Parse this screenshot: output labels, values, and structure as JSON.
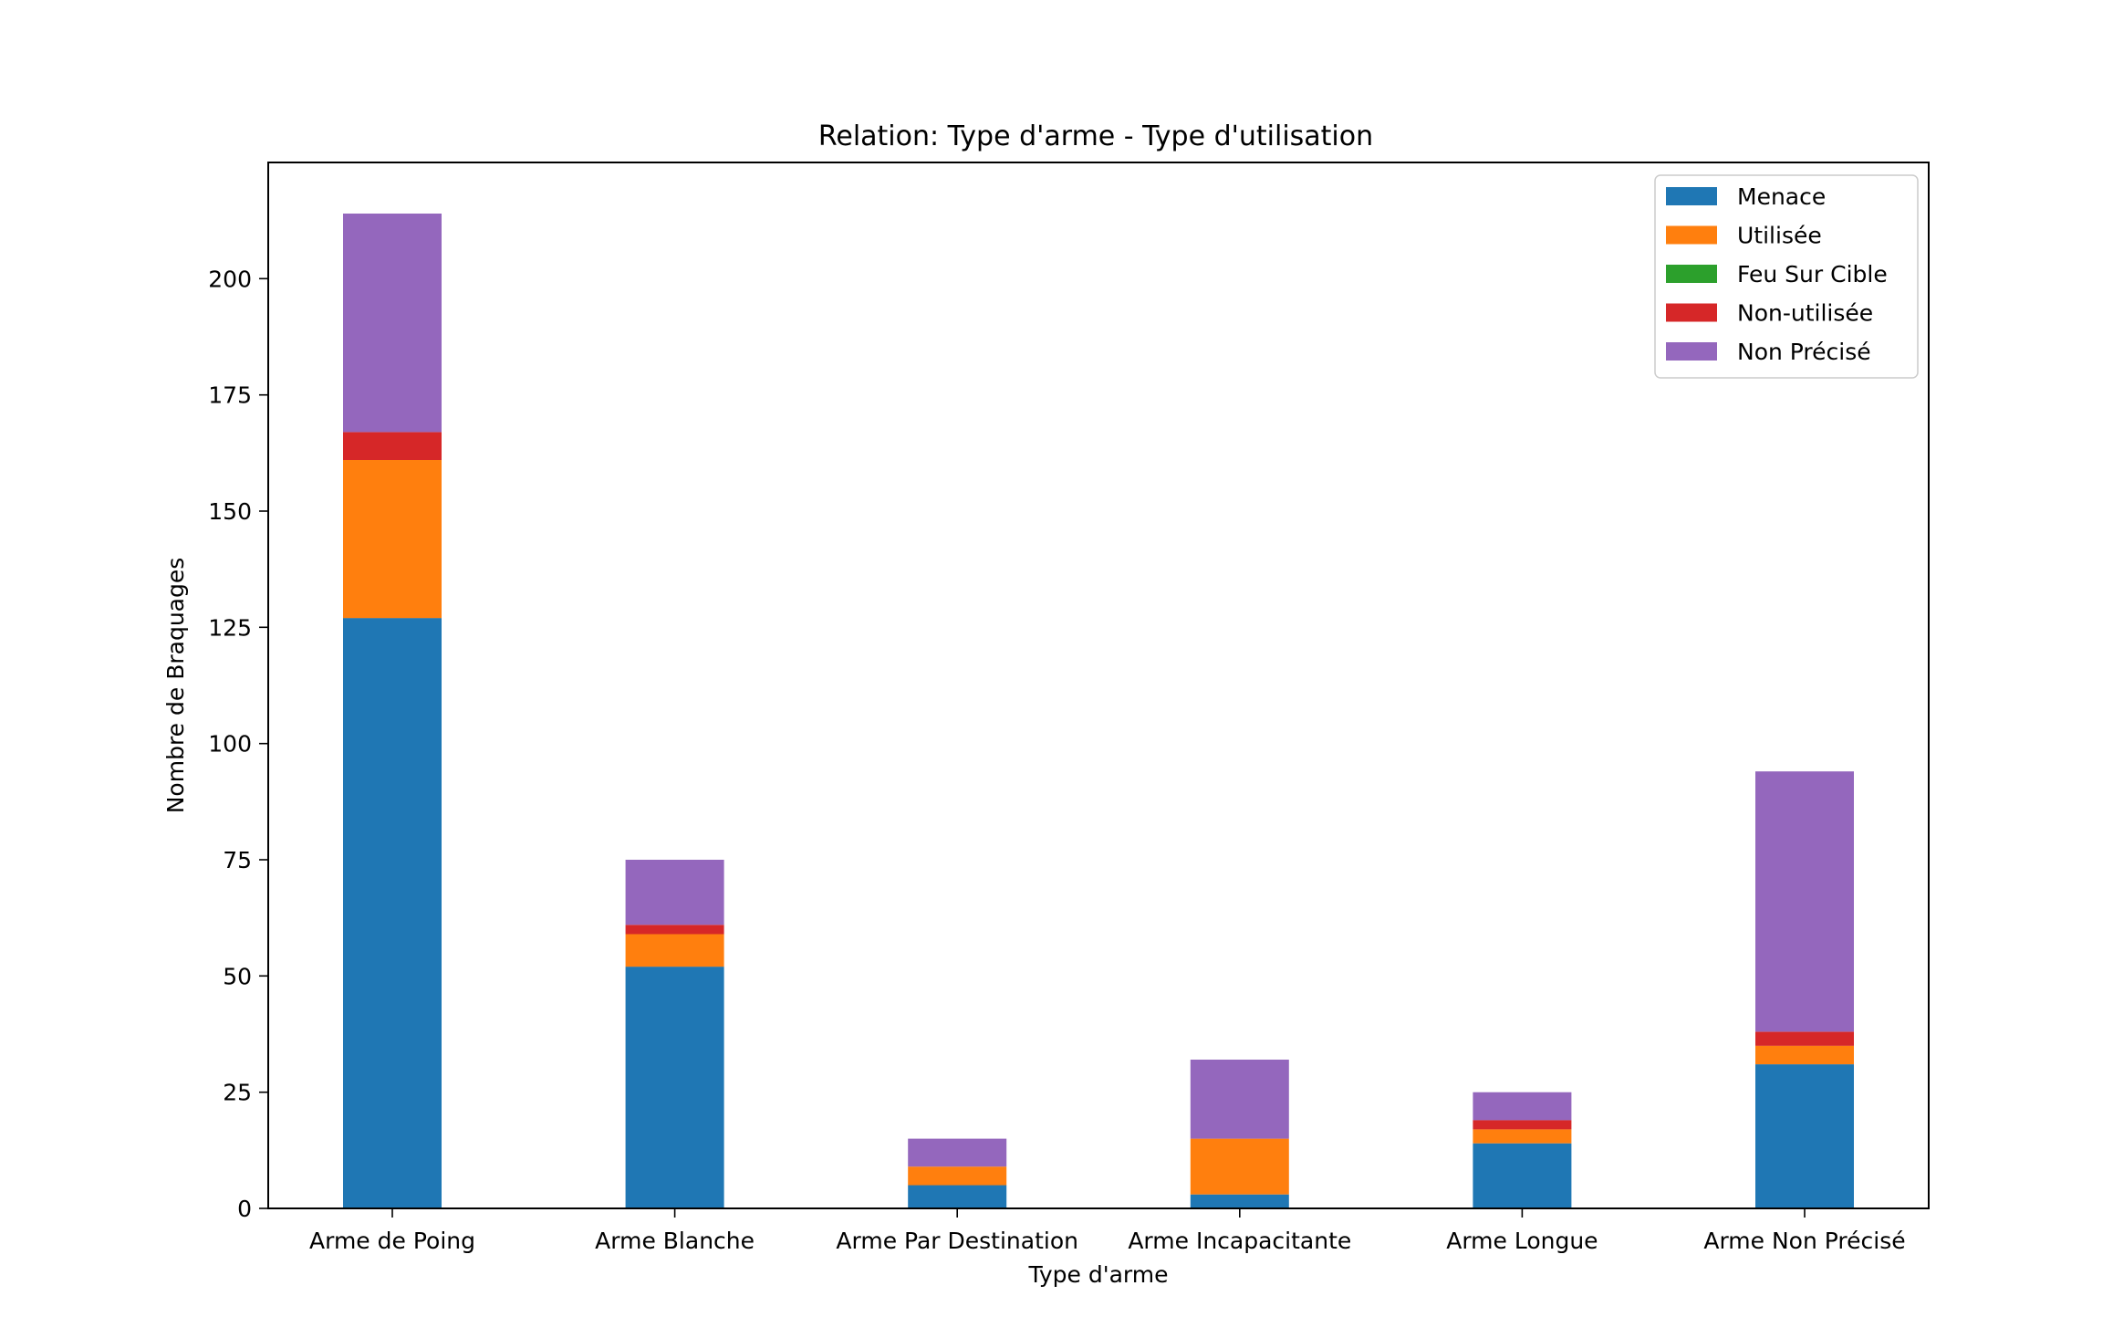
{
  "chart_data": {
    "type": "bar",
    "stacked": true,
    "title": "Relation: Type d'arme - Type d'utilisation",
    "xlabel": "Type d'arme",
    "ylabel": "Nombre de Braquages",
    "categories": [
      "Arme de Poing",
      "Arme Blanche",
      "Arme Par Destination",
      "Arme Incapacitante",
      "Arme Longue",
      "Arme Non Précisé"
    ],
    "series": [
      {
        "name": "Menace",
        "color": "#1f77b4",
        "values": [
          127,
          52,
          5,
          3,
          14,
          31
        ]
      },
      {
        "name": "Utilisée",
        "color": "#ff7f0e",
        "values": [
          34,
          7,
          4,
          12,
          3,
          4
        ]
      },
      {
        "name": "Feu Sur Cible",
        "color": "#2ca02c",
        "values": [
          0,
          0,
          0,
          0,
          0,
          0
        ]
      },
      {
        "name": "Non-utilisée",
        "color": "#d62728",
        "values": [
          6,
          2,
          0,
          0,
          2,
          3
        ]
      },
      {
        "name": "Non Précisé",
        "color": "#9467bd",
        "values": [
          47,
          14,
          6,
          17,
          6,
          56
        ]
      }
    ],
    "ylim": [
      0,
      225
    ],
    "yticks": [
      0,
      25,
      50,
      75,
      100,
      125,
      150,
      175,
      200
    ],
    "grid": false,
    "legend_position": "top-right"
  }
}
